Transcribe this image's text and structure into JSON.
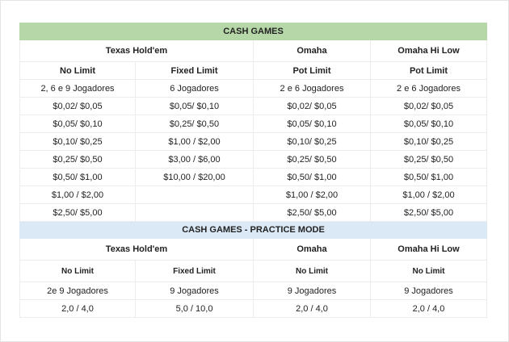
{
  "cash_games": {
    "title": "CASH GAMES",
    "games": [
      "Texas Hold'em",
      "Omaha",
      "Omaha Hi Low"
    ],
    "limits": [
      "No Limit",
      "Fixed Limit",
      "Pot Limit",
      "Pot Limit"
    ],
    "rows": [
      [
        "2, 6 e 9 Jogadores",
        "6 Jogadores",
        "2 e 6 Jogadores",
        "2 e 6 Jogadores"
      ],
      [
        "$0,02/ $0,05",
        "$0,05/ $0,10",
        "$0,02/ $0,05",
        "$0,02/ $0,05"
      ],
      [
        "$0,05/ $0,10",
        "$0,25/ $0,50",
        "$0,05/ $0,10",
        "$0,05/ $0,10"
      ],
      [
        "$0,10/ $0,25",
        "$1,00 / $2,00",
        "$0,10/ $0,25",
        "$0,10/ $0,25"
      ],
      [
        "$0,25/ $0,50",
        "$3,00 / $6,00",
        "$0,25/ $0,50",
        "$0,25/ $0,50"
      ],
      [
        "$0,50/ $1,00",
        "$10,00 / $20,00",
        "$0,50/ $1,00",
        "$0,50/ $1,00"
      ],
      [
        "$1,00 / $2,00",
        "",
        "$1,00 / $2,00",
        "$1,00 / $2,00"
      ],
      [
        "$2,50/ $5,00",
        "",
        "$2,50/ $5,00",
        "$2,50/ $5,00"
      ]
    ]
  },
  "practice": {
    "title": "CASH GAMES - PRACTICE MODE",
    "games": [
      "Texas Hold'em",
      "Omaha",
      "Omaha Hi Low"
    ],
    "limits": [
      "No Limit",
      "Fixed Limit",
      "No Limit",
      "No Limit"
    ],
    "rows": [
      [
        "2e 9 Jogadores",
        "9 Jogadores",
        "9 Jogadores",
        "9 Jogadores"
      ],
      [
        "2,0 / 4,0",
        "5,0 / 10,0",
        "2,0 / 4,0",
        "2,0 / 4,0"
      ]
    ]
  }
}
